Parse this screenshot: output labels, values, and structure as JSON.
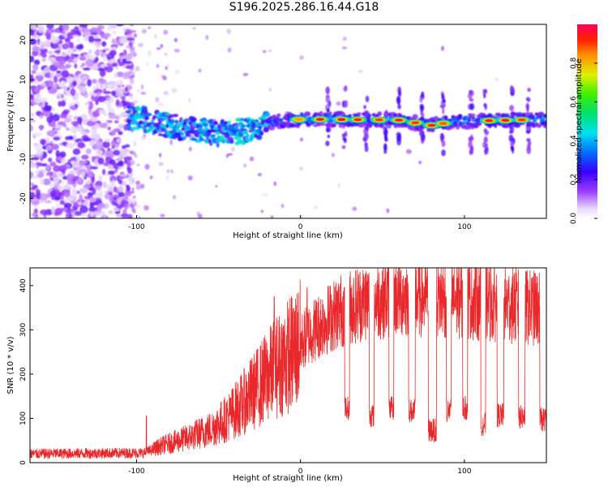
{
  "title": "S196.2025.286.16.44.G18",
  "colors": {
    "snr_line": "#e8282a",
    "axis": "#000000"
  },
  "spectrogram": {
    "type": "heatmap",
    "xlabel": "Height of straight line (km)",
    "ylabel": "Frequency (Hz)",
    "xlim": [
      -165,
      150
    ],
    "ylim": [
      -25,
      24
    ],
    "x_ticks": [
      -100,
      0,
      100
    ],
    "x_tick_labels": [
      "-100",
      "0",
      "100"
    ],
    "y_ticks": [
      -20,
      -10,
      0,
      10,
      20
    ],
    "y_tick_labels": [
      "-20",
      "-10",
      "0",
      "10",
      "20"
    ],
    "noise_region_end_km": -103,
    "ridge": [
      {
        "x": -105,
        "f": 0.8
      },
      {
        "x": -90,
        "f": -0.5
      },
      {
        "x": -70,
        "f": -2.5
      },
      {
        "x": -50,
        "f": -3.5
      },
      {
        "x": -35,
        "f": -3.0
      },
      {
        "x": -25,
        "f": -2.0
      },
      {
        "x": -15,
        "f": -0.5
      },
      {
        "x": 0,
        "f": 0.0
      },
      {
        "x": 20,
        "f": 0.0
      },
      {
        "x": 60,
        "f": -0.2
      },
      {
        "x": 80,
        "f": -1.5
      },
      {
        "x": 95,
        "f": -0.5
      },
      {
        "x": 150,
        "f": 0.0
      }
    ],
    "peaks": [
      {
        "x": -1,
        "amp": 0.82
      },
      {
        "x": 12,
        "amp": 0.95
      },
      {
        "x": 25,
        "amp": 0.98
      },
      {
        "x": 35,
        "amp": 0.92
      },
      {
        "x": 48,
        "amp": 0.9
      },
      {
        "x": 60,
        "amp": 0.95
      },
      {
        "x": 70,
        "amp": 0.9
      },
      {
        "x": 80,
        "amp": 0.92
      },
      {
        "x": 87,
        "amp": 0.88
      },
      {
        "x": 115,
        "amp": 0.93
      },
      {
        "x": 125,
        "amp": 0.95
      },
      {
        "x": 135,
        "amp": 0.9
      }
    ],
    "spikes_km": [
      17,
      27,
      40,
      52,
      60,
      74,
      87,
      104,
      113,
      129,
      139
    ]
  },
  "colorbar": {
    "label": "Normalized spectral amplitude",
    "range": [
      0,
      1
    ],
    "ticks": [
      0.0,
      0.2,
      0.4,
      0.6,
      0.8
    ],
    "tick_labels": [
      "0.0",
      "0.2",
      "0.4",
      "0.6",
      "0.8"
    ]
  },
  "snr_chart": {
    "type": "line",
    "xlabel": "Height of straight line (km)",
    "ylabel": "SNR (10 * v/v)",
    "xlim": [
      -165,
      150
    ],
    "ylim": [
      0,
      440
    ],
    "x_ticks": [
      -100,
      0,
      100
    ],
    "x_tick_labels": [
      "-100",
      "0",
      "100"
    ],
    "y_ticks": [
      0,
      100,
      200,
      300,
      400
    ],
    "y_tick_labels": [
      "0",
      "100",
      "200",
      "300",
      "400"
    ],
    "baseline_points": [
      {
        "x": -165,
        "snr": 20
      },
      {
        "x": -95,
        "snr": 22
      },
      {
        "x": -85,
        "snr": 38
      },
      {
        "x": -70,
        "snr": 55
      },
      {
        "x": -55,
        "snr": 75
      },
      {
        "x": -45,
        "snr": 100
      },
      {
        "x": -35,
        "snr": 135
      },
      {
        "x": -25,
        "snr": 175
      },
      {
        "x": -15,
        "snr": 215
      },
      {
        "x": -5,
        "snr": 250
      },
      {
        "x": 5,
        "snr": 290
      },
      {
        "x": 15,
        "snr": 320
      },
      {
        "x": 25,
        "snr": 345
      },
      {
        "x": 40,
        "snr": 365
      },
      {
        "x": 60,
        "snr": 375
      },
      {
        "x": 100,
        "snr": 370
      },
      {
        "x": 150,
        "snr": 345
      }
    ],
    "dropouts": [
      {
        "start": 27,
        "end": 30,
        "min": 95
      },
      {
        "start": 42,
        "end": 45,
        "min": 80
      },
      {
        "start": 54,
        "end": 57,
        "min": 95
      },
      {
        "start": 66,
        "end": 70,
        "min": 90
      },
      {
        "start": 78,
        "end": 83,
        "min": 45
      },
      {
        "start": 89,
        "end": 92,
        "min": 90
      },
      {
        "start": 99,
        "end": 102,
        "min": 95
      },
      {
        "start": 110,
        "end": 113,
        "min": 60
      },
      {
        "start": 120,
        "end": 124,
        "min": 80
      },
      {
        "start": 133,
        "end": 137,
        "min": 75
      },
      {
        "start": 146,
        "end": 150,
        "min": 70
      }
    ],
    "outlier_spikes": [
      {
        "x": -94,
        "snr": 105
      },
      {
        "x": -16,
        "snr": 375
      },
      {
        "x": 4,
        "snr": 395
      }
    ]
  }
}
